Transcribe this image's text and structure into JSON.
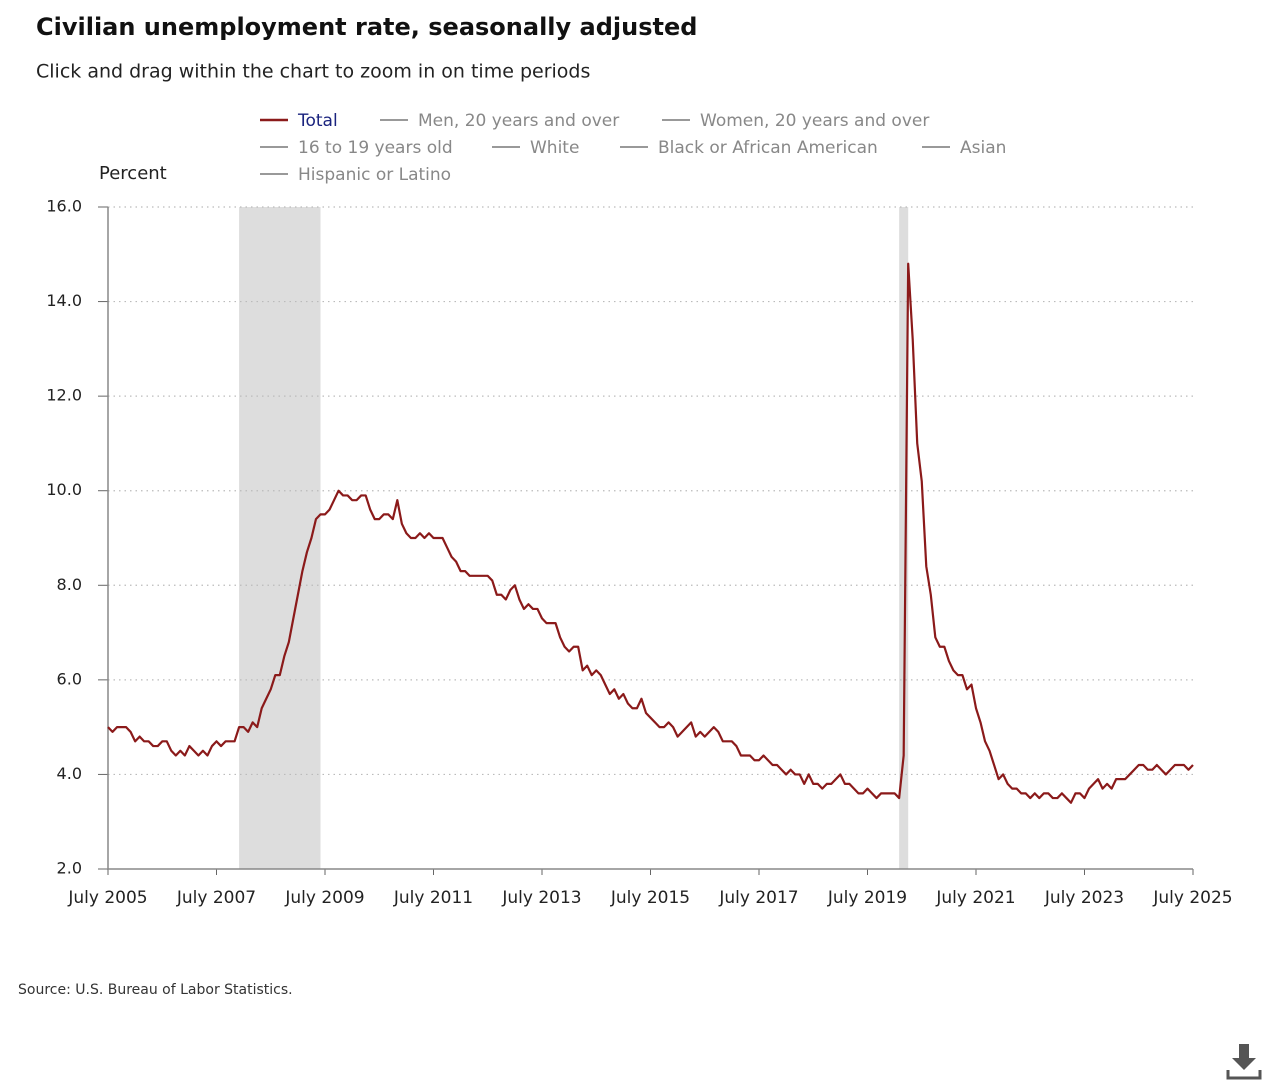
{
  "chart_data": {
    "type": "line",
    "title": "Civilian unemployment rate, seasonally adjusted",
    "subtitle": "Click and drag within the chart to zoom in on time periods",
    "y_label": "Percent",
    "source": "Source: U.S. Bureau of Labor Statistics.",
    "x": [
      "2005-07",
      "2005-08",
      "2005-09",
      "2005-10",
      "2005-11",
      "2005-12",
      "2006-01",
      "2006-02",
      "2006-03",
      "2006-04",
      "2006-05",
      "2006-06",
      "2006-07",
      "2006-08",
      "2006-09",
      "2006-10",
      "2006-11",
      "2006-12",
      "2007-01",
      "2007-02",
      "2007-03",
      "2007-04",
      "2007-05",
      "2007-06",
      "2007-07",
      "2007-08",
      "2007-09",
      "2007-10",
      "2007-11",
      "2007-12",
      "2008-01",
      "2008-02",
      "2008-03",
      "2008-04",
      "2008-05",
      "2008-06",
      "2008-07",
      "2008-08",
      "2008-09",
      "2008-10",
      "2008-11",
      "2008-12",
      "2009-01",
      "2009-02",
      "2009-03",
      "2009-04",
      "2009-05",
      "2009-06",
      "2009-07",
      "2009-08",
      "2009-09",
      "2009-10",
      "2009-11",
      "2009-12",
      "2010-01",
      "2010-02",
      "2010-03",
      "2010-04",
      "2010-05",
      "2010-06",
      "2010-07",
      "2010-08",
      "2010-09",
      "2010-10",
      "2010-11",
      "2010-12",
      "2011-01",
      "2011-02",
      "2011-03",
      "2011-04",
      "2011-05",
      "2011-06",
      "2011-07",
      "2011-08",
      "2011-09",
      "2011-10",
      "2011-11",
      "2011-12",
      "2012-01",
      "2012-02",
      "2012-03",
      "2012-04",
      "2012-05",
      "2012-06",
      "2012-07",
      "2012-08",
      "2012-09",
      "2012-10",
      "2012-11",
      "2012-12",
      "2013-01",
      "2013-02",
      "2013-03",
      "2013-04",
      "2013-05",
      "2013-06",
      "2013-07",
      "2013-08",
      "2013-09",
      "2013-10",
      "2013-11",
      "2013-12",
      "2014-01",
      "2014-02",
      "2014-03",
      "2014-04",
      "2014-05",
      "2014-06",
      "2014-07",
      "2014-08",
      "2014-09",
      "2014-10",
      "2014-11",
      "2014-12",
      "2015-01",
      "2015-02",
      "2015-03",
      "2015-04",
      "2015-05",
      "2015-06",
      "2015-07",
      "2015-08",
      "2015-09",
      "2015-10",
      "2015-11",
      "2015-12",
      "2016-01",
      "2016-02",
      "2016-03",
      "2016-04",
      "2016-05",
      "2016-06",
      "2016-07",
      "2016-08",
      "2016-09",
      "2016-10",
      "2016-11",
      "2016-12",
      "2017-01",
      "2017-02",
      "2017-03",
      "2017-04",
      "2017-05",
      "2017-06",
      "2017-07",
      "2017-08",
      "2017-09",
      "2017-10",
      "2017-11",
      "2017-12",
      "2018-01",
      "2018-02",
      "2018-03",
      "2018-04",
      "2018-05",
      "2018-06",
      "2018-07",
      "2018-08",
      "2018-09",
      "2018-10",
      "2018-11",
      "2018-12",
      "2019-01",
      "2019-02",
      "2019-03",
      "2019-04",
      "2019-05",
      "2019-06",
      "2019-07",
      "2019-08",
      "2019-09",
      "2019-10",
      "2019-11",
      "2019-12",
      "2020-01",
      "2020-02",
      "2020-03",
      "2020-04",
      "2020-05",
      "2020-06",
      "2020-07",
      "2020-08",
      "2020-09",
      "2020-10",
      "2020-11",
      "2020-12",
      "2021-01",
      "2021-02",
      "2021-03",
      "2021-04",
      "2021-05",
      "2021-06",
      "2021-07",
      "2021-08",
      "2021-09",
      "2021-10",
      "2021-11",
      "2021-12",
      "2022-01",
      "2022-02",
      "2022-03",
      "2022-04",
      "2022-05",
      "2022-06",
      "2022-07",
      "2022-08",
      "2022-09",
      "2022-10",
      "2022-11",
      "2022-12",
      "2023-01",
      "2023-02",
      "2023-03",
      "2023-04",
      "2023-05",
      "2023-06",
      "2023-07",
      "2023-08",
      "2023-09",
      "2023-10",
      "2023-11",
      "2023-12",
      "2024-01",
      "2024-02",
      "2024-03",
      "2024-04",
      "2024-05",
      "2024-06",
      "2024-07",
      "2024-08",
      "2024-09",
      "2024-10",
      "2024-11",
      "2024-12",
      "2025-01",
      "2025-02",
      "2025-03",
      "2025-04",
      "2025-05",
      "2025-06",
      "2025-07"
    ],
    "series": [
      {
        "name": "Total",
        "color": "#8b1a1a",
        "values": [
          5.0,
          4.9,
          5.0,
          5.0,
          5.0,
          4.9,
          4.7,
          4.8,
          4.7,
          4.7,
          4.6,
          4.6,
          4.7,
          4.7,
          4.5,
          4.4,
          4.5,
          4.4,
          4.6,
          4.5,
          4.4,
          4.5,
          4.4,
          4.6,
          4.7,
          4.6,
          4.7,
          4.7,
          4.7,
          5.0,
          5.0,
          4.9,
          5.1,
          5.0,
          5.4,
          5.6,
          5.8,
          6.1,
          6.1,
          6.5,
          6.8,
          7.3,
          7.8,
          8.3,
          8.7,
          9.0,
          9.4,
          9.5,
          9.5,
          9.6,
          9.8,
          10.0,
          9.9,
          9.9,
          9.8,
          9.8,
          9.9,
          9.9,
          9.6,
          9.4,
          9.4,
          9.5,
          9.5,
          9.4,
          9.8,
          9.3,
          9.1,
          9.0,
          9.0,
          9.1,
          9.0,
          9.1,
          9.0,
          9.0,
          9.0,
          8.8,
          8.6,
          8.5,
          8.3,
          8.3,
          8.2,
          8.2,
          8.2,
          8.2,
          8.2,
          8.1,
          7.8,
          7.8,
          7.7,
          7.9,
          8.0,
          7.7,
          7.5,
          7.6,
          7.5,
          7.5,
          7.3,
          7.2,
          7.2,
          7.2,
          6.9,
          6.7,
          6.6,
          6.7,
          6.7,
          6.2,
          6.3,
          6.1,
          6.2,
          6.1,
          5.9,
          5.7,
          5.8,
          5.6,
          5.7,
          5.5,
          5.4,
          5.4,
          5.6,
          5.3,
          5.2,
          5.1,
          5.0,
          5.0,
          5.1,
          5.0,
          4.8,
          4.9,
          5.0,
          5.1,
          4.8,
          4.9,
          4.8,
          4.9,
          5.0,
          4.9,
          4.7,
          4.7,
          4.7,
          4.6,
          4.4,
          4.4,
          4.4,
          4.3,
          4.3,
          4.4,
          4.3,
          4.2,
          4.2,
          4.1,
          4.0,
          4.1,
          4.0,
          4.0,
          3.8,
          4.0,
          3.8,
          3.8,
          3.7,
          3.8,
          3.8,
          3.9,
          4.0,
          3.8,
          3.8,
          3.7,
          3.6,
          3.6,
          3.7,
          3.6,
          3.5,
          3.6,
          3.6,
          3.6,
          3.6,
          3.5,
          4.4,
          14.8,
          13.2,
          11.0,
          10.2,
          8.4,
          7.8,
          6.9,
          6.7,
          6.7,
          6.4,
          6.2,
          6.1,
          6.1,
          5.8,
          5.9,
          5.4,
          5.1,
          4.7,
          4.5,
          4.2,
          3.9,
          4.0,
          3.8,
          3.7,
          3.7,
          3.6,
          3.6,
          3.5,
          3.6,
          3.5,
          3.6,
          3.6,
          3.5,
          3.5,
          3.6,
          3.5,
          3.4,
          3.6,
          3.6,
          3.5,
          3.7,
          3.8,
          3.9,
          3.7,
          3.8,
          3.7,
          3.9,
          3.9,
          3.9,
          4.0,
          4.1,
          4.2,
          4.2,
          4.1,
          4.1,
          4.2,
          4.1,
          4.0,
          4.1,
          4.2,
          4.2,
          4.2,
          4.1,
          4.2
        ]
      }
    ],
    "hidden_series": [
      {
        "name": "Men, 20 years and over",
        "color": "#999999"
      },
      {
        "name": "Women, 20 years and over",
        "color": "#999999"
      },
      {
        "name": "16 to 19 years old",
        "color": "#999999"
      },
      {
        "name": "White",
        "color": "#999999"
      },
      {
        "name": "Black or African American",
        "color": "#999999"
      },
      {
        "name": "Asian",
        "color": "#999999"
      },
      {
        "name": "Hispanic or Latino",
        "color": "#999999"
      }
    ],
    "recessions": [
      {
        "start": "2007-12",
        "end": "2009-06"
      },
      {
        "start": "2020-02",
        "end": "2020-04"
      }
    ],
    "recession_color": "#dddddd",
    "xlim": [
      "2005-07",
      "2025-07"
    ],
    "xticks": [
      {
        "value": "2005-07",
        "label": "July 2005"
      },
      {
        "value": "2007-07",
        "label": "July 2007"
      },
      {
        "value": "2009-07",
        "label": "July 2009"
      },
      {
        "value": "2011-07",
        "label": "July 2011"
      },
      {
        "value": "2013-07",
        "label": "July 2013"
      },
      {
        "value": "2015-07",
        "label": "July 2015"
      },
      {
        "value": "2017-07",
        "label": "July 2017"
      },
      {
        "value": "2019-07",
        "label": "July 2019"
      },
      {
        "value": "2021-07",
        "label": "July 2021"
      },
      {
        "value": "2023-07",
        "label": "July 2023"
      },
      {
        "value": "2025-07",
        "label": "July 2025"
      }
    ],
    "ylim": [
      2,
      16
    ],
    "yticks": [
      {
        "value": 2,
        "label": "2.0"
      },
      {
        "value": 4,
        "label": "4.0"
      },
      {
        "value": 6,
        "label": "6.0"
      },
      {
        "value": 8,
        "label": "8.0"
      },
      {
        "value": 10,
        "label": "10.0"
      },
      {
        "value": 12,
        "label": "12.0"
      },
      {
        "value": 14,
        "label": "14.0"
      },
      {
        "value": 16,
        "label": "16.0"
      }
    ],
    "grid": true
  }
}
